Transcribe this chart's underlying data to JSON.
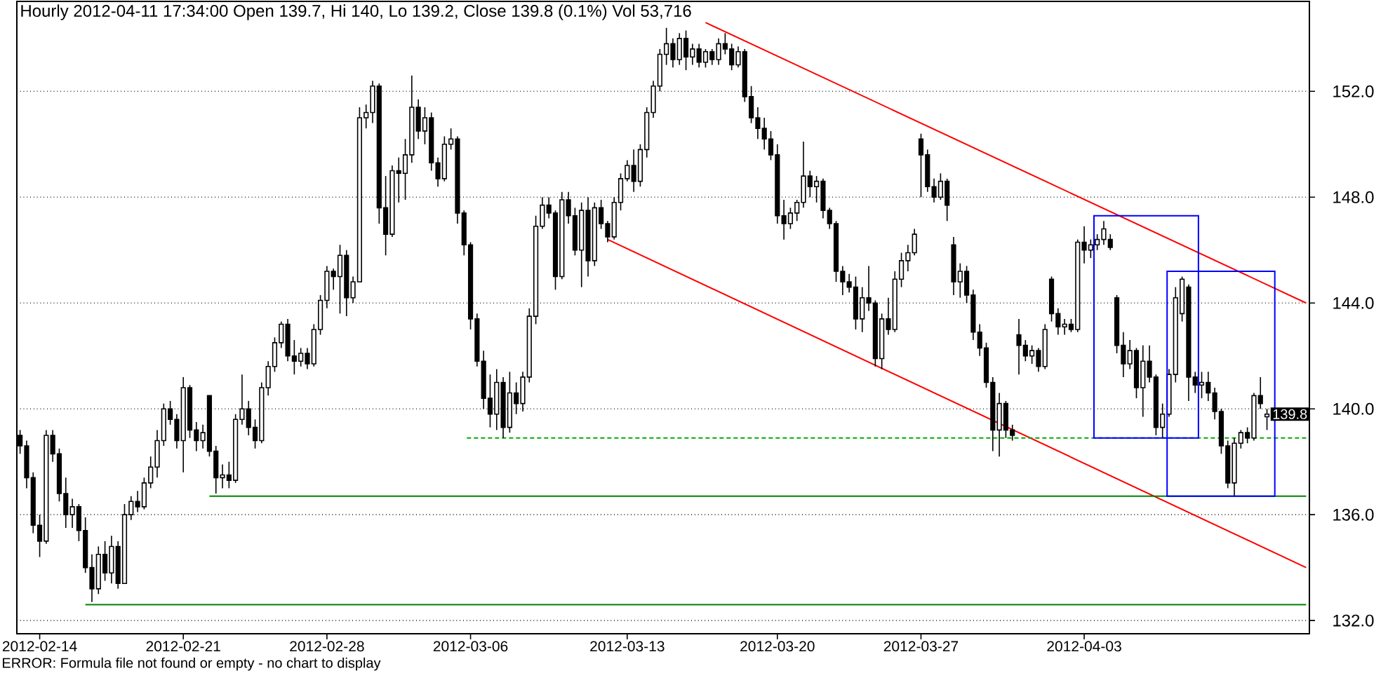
{
  "chart_data": {
    "type": "candlestick",
    "title": "Hourly 2012-04-11 17:34:00 Open 139.7, Hi 140, Lo 139.2, Close 139.8 (0.1%) Vol 53,716",
    "annotations": [
      "ERROR: Formula file not found or empty - no chart to display",
      {
        "text": "139.8",
        "y": 139.8
      }
    ],
    "ylim": [
      131.5,
      155.4
    ],
    "yticks": [
      {
        "value": 132,
        "label": "132.0"
      },
      {
        "value": 136,
        "label": "136.0"
      },
      {
        "value": 140,
        "label": "140.0"
      },
      {
        "value": 144,
        "label": "144.0"
      },
      {
        "value": 148,
        "label": "148.0"
      },
      {
        "value": 152,
        "label": "152.0"
      }
    ],
    "grid": "y",
    "categories": [
      null,
      null,
      null,
      "2012-02-14",
      null,
      null,
      null,
      null,
      null,
      null,
      null,
      null,
      null,
      null,
      null,
      null,
      null,
      null,
      null,
      null,
      null,
      null,
      null,
      null,
      null,
      "2012-02-21",
      null,
      null,
      null,
      null,
      null,
      null,
      null,
      null,
      null,
      null,
      null,
      null,
      null,
      null,
      null,
      null,
      null,
      null,
      null,
      null,
      null,
      "2012-02-28",
      null,
      null,
      null,
      null,
      null,
      null,
      null,
      null,
      null,
      null,
      null,
      null,
      null,
      null,
      null,
      null,
      null,
      null,
      null,
      null,
      null,
      "2012-03-06",
      null,
      null,
      null,
      null,
      null,
      null,
      null,
      null,
      null,
      null,
      null,
      null,
      null,
      null,
      null,
      null,
      null,
      null,
      null,
      null,
      null,
      null,
      null,
      "2012-03-13",
      null,
      null,
      null,
      null,
      null,
      null,
      null,
      null,
      null,
      null,
      null,
      null,
      null,
      null,
      null,
      null,
      null,
      null,
      null,
      null,
      null,
      null,
      "2012-03-20",
      null,
      null,
      null,
      null,
      null,
      null,
      null,
      null,
      null,
      null,
      null,
      null,
      null,
      null,
      null,
      null,
      null,
      null,
      null,
      null,
      null,
      "2012-03-27",
      null,
      null,
      null,
      null,
      null,
      null,
      null,
      null,
      null,
      null,
      null,
      null,
      null,
      null,
      null,
      null,
      null,
      null,
      null,
      null,
      null,
      null,
      null,
      null,
      "2012-04-03",
      null,
      null,
      null,
      null,
      null,
      null,
      null,
      null,
      null,
      null,
      null,
      null,
      null,
      null,
      null,
      null,
      null,
      null,
      null,
      null,
      null,
      null,
      null,
      null,
      null,
      null,
      null,
      null,
      null,
      null,
      null,
      null,
      null,
      null
    ],
    "ohlc": [
      [
        139.0,
        139.2,
        138.3,
        138.6
      ],
      [
        138.6,
        138.8,
        137.0,
        137.4
      ],
      [
        137.4,
        137.6,
        135.3,
        135.6
      ],
      [
        135.6,
        136.0,
        134.4,
        135.0
      ],
      [
        135.0,
        139.2,
        134.9,
        139.0
      ],
      [
        139.0,
        139.2,
        138.0,
        138.3
      ],
      [
        138.3,
        138.5,
        136.5,
        136.8
      ],
      [
        136.8,
        137.4,
        135.5,
        136.0
      ],
      [
        136.0,
        136.6,
        135.5,
        136.3
      ],
      [
        136.3,
        136.4,
        135.0,
        135.4
      ],
      [
        135.4,
        135.9,
        133.8,
        134.0
      ],
      [
        134.0,
        134.5,
        132.7,
        133.2
      ],
      [
        133.2,
        134.8,
        133.0,
        134.5
      ],
      [
        134.5,
        135.0,
        133.5,
        133.8
      ],
      [
        133.8,
        135.2,
        133.4,
        134.8
      ],
      [
        134.8,
        135.0,
        133.2,
        133.4
      ],
      [
        133.4,
        136.4,
        133.4,
        136.0
      ],
      [
        136.0,
        136.7,
        135.8,
        136.5
      ],
      [
        136.5,
        136.9,
        136.1,
        136.3
      ],
      [
        136.3,
        137.4,
        136.2,
        137.2
      ],
      [
        137.2,
        138.2,
        137.0,
        137.8
      ],
      [
        137.8,
        139.2,
        137.4,
        138.8
      ],
      [
        138.8,
        140.2,
        138.6,
        140.0
      ],
      [
        140.0,
        140.3,
        139.4,
        139.6
      ],
      [
        139.6,
        139.8,
        138.5,
        138.8
      ],
      [
        138.8,
        141.2,
        137.6,
        140.8
      ],
      [
        140.8,
        140.9,
        138.9,
        139.2
      ],
      [
        139.2,
        139.5,
        138.4,
        138.8
      ],
      [
        138.8,
        139.4,
        138.5,
        139.1
      ],
      [
        140.5,
        140.5,
        138.2,
        138.4
      ],
      [
        138.4,
        138.6,
        136.8,
        137.4
      ],
      [
        137.4,
        137.9,
        137.0,
        137.5
      ],
      [
        137.5,
        138.0,
        137.0,
        137.3
      ],
      [
        137.3,
        139.8,
        137.2,
        139.6
      ],
      [
        139.6,
        141.3,
        139.4,
        140.0
      ],
      [
        140.0,
        140.3,
        139.0,
        139.3
      ],
      [
        139.3,
        139.6,
        138.5,
        138.8
      ],
      [
        138.8,
        141.0,
        138.7,
        140.8
      ],
      [
        140.8,
        141.8,
        140.5,
        141.6
      ],
      [
        141.6,
        142.7,
        141.4,
        142.5
      ],
      [
        142.5,
        143.3,
        142.3,
        143.2
      ],
      [
        143.2,
        143.4,
        141.8,
        142.0
      ],
      [
        142.0,
        142.6,
        141.3,
        141.8
      ],
      [
        141.8,
        142.3,
        141.6,
        142.1
      ],
      [
        142.1,
        142.3,
        141.5,
        141.7
      ],
      [
        141.7,
        143.2,
        141.6,
        143.0
      ],
      [
        143.0,
        144.3,
        142.8,
        144.1
      ],
      [
        144.1,
        145.4,
        143.8,
        145.2
      ],
      [
        145.2,
        145.3,
        144.5,
        145.0
      ],
      [
        145.0,
        146.2,
        143.6,
        145.8
      ],
      [
        145.8,
        146.0,
        143.5,
        144.2
      ],
      [
        144.2,
        145.0,
        144.0,
        144.8
      ],
      [
        144.8,
        151.4,
        144.8,
        151.0
      ],
      [
        151.0,
        151.5,
        150.6,
        151.2
      ],
      [
        151.2,
        152.4,
        150.8,
        152.2
      ],
      [
        152.2,
        152.3,
        147.0,
        147.6
      ],
      [
        147.6,
        148.8,
        145.8,
        146.6
      ],
      [
        146.6,
        149.2,
        146.5,
        149.0
      ],
      [
        149.0,
        149.5,
        147.8,
        148.9
      ],
      [
        148.9,
        150.2,
        147.9,
        149.6
      ],
      [
        149.6,
        152.6,
        149.3,
        151.4
      ],
      [
        151.4,
        151.7,
        150.2,
        150.5
      ],
      [
        150.5,
        151.4,
        150.0,
        151.0
      ],
      [
        151.0,
        151.2,
        149.0,
        149.3
      ],
      [
        149.3,
        149.5,
        148.4,
        148.7
      ],
      [
        148.7,
        150.3,
        148.6,
        150.0
      ],
      [
        150.0,
        150.6,
        149.8,
        150.2
      ],
      [
        150.2,
        150.3,
        147.0,
        147.4
      ],
      [
        147.4,
        147.5,
        145.8,
        146.2
      ],
      [
        146.2,
        146.3,
        143.0,
        143.4
      ],
      [
        143.4,
        143.6,
        141.6,
        141.8
      ],
      [
        141.8,
        142.2,
        140.0,
        140.4
      ],
      [
        140.4,
        141.3,
        139.3,
        139.8
      ],
      [
        139.8,
        141.5,
        139.2,
        141.0
      ],
      [
        141.0,
        141.2,
        138.9,
        139.3
      ],
      [
        139.3,
        141.4,
        139.1,
        140.6
      ],
      [
        140.6,
        141.0,
        139.8,
        140.2
      ],
      [
        140.2,
        141.4,
        139.9,
        141.2
      ],
      [
        141.2,
        143.8,
        141.0,
        143.5
      ],
      [
        143.5,
        147.3,
        143.2,
        146.9
      ],
      [
        146.9,
        148.0,
        146.8,
        147.7
      ],
      [
        147.7,
        148.0,
        147.2,
        147.4
      ],
      [
        147.4,
        147.5,
        144.5,
        145.0
      ],
      [
        145.0,
        148.2,
        144.9,
        147.9
      ],
      [
        147.9,
        148.2,
        147.0,
        147.3
      ],
      [
        147.3,
        147.6,
        145.8,
        146.0
      ],
      [
        146.0,
        147.8,
        144.6,
        147.5
      ],
      [
        147.5,
        148.0,
        145.0,
        145.6
      ],
      [
        145.6,
        147.8,
        145.4,
        147.6
      ],
      [
        147.6,
        147.9,
        146.8,
        147.0
      ],
      [
        147.0,
        147.1,
        146.3,
        146.5
      ],
      [
        146.5,
        148.0,
        146.4,
        147.8
      ],
      [
        147.8,
        148.9,
        147.5,
        148.7
      ],
      [
        148.7,
        149.4,
        148.6,
        149.2
      ],
      [
        149.2,
        149.8,
        148.2,
        148.6
      ],
      [
        148.6,
        150.0,
        148.4,
        149.8
      ],
      [
        149.8,
        151.4,
        149.5,
        151.2
      ],
      [
        151.2,
        152.4,
        151.0,
        152.2
      ],
      [
        152.2,
        153.6,
        152.0,
        153.4
      ],
      [
        153.4,
        154.4,
        153.0,
        153.8
      ],
      [
        153.8,
        154.0,
        152.9,
        153.2
      ],
      [
        153.2,
        154.2,
        153.0,
        154.0
      ],
      [
        154.0,
        154.3,
        152.8,
        153.3
      ],
      [
        153.3,
        153.8,
        153.0,
        153.6
      ],
      [
        153.6,
        153.8,
        152.9,
        153.1
      ],
      [
        153.1,
        153.6,
        152.9,
        153.5
      ],
      [
        153.5,
        153.6,
        153.0,
        153.2
      ],
      [
        153.2,
        154.0,
        153.0,
        153.8
      ],
      [
        153.8,
        154.2,
        153.4,
        153.6
      ],
      [
        153.6,
        153.8,
        152.8,
        153.0
      ],
      [
        153.0,
        153.7,
        152.9,
        153.5
      ],
      [
        153.5,
        153.6,
        151.6,
        151.8
      ],
      [
        151.8,
        152.2,
        150.8,
        151.0
      ],
      [
        151.0,
        151.4,
        150.2,
        150.6
      ],
      [
        150.6,
        151.0,
        149.8,
        150.2
      ],
      [
        150.2,
        150.5,
        149.4,
        149.6
      ],
      [
        149.6,
        150.0,
        147.0,
        147.3
      ],
      [
        147.3,
        147.9,
        146.4,
        147.0
      ],
      [
        147.0,
        147.6,
        146.8,
        147.4
      ],
      [
        147.4,
        147.9,
        147.1,
        147.8
      ],
      [
        147.8,
        150.1,
        147.6,
        148.8
      ],
      [
        148.8,
        149.0,
        148.0,
        148.4
      ],
      [
        148.4,
        148.8,
        147.8,
        148.6
      ],
      [
        148.6,
        148.7,
        147.2,
        147.5
      ],
      [
        147.5,
        147.6,
        146.8,
        147.0
      ],
      [
        147.0,
        147.1,
        144.8,
        145.2
      ],
      [
        145.2,
        145.4,
        144.3,
        144.8
      ],
      [
        144.8,
        145.1,
        144.4,
        144.6
      ],
      [
        144.6,
        145.0,
        143.0,
        143.4
      ],
      [
        143.4,
        144.6,
        142.9,
        144.2
      ],
      [
        144.2,
        145.4,
        143.7,
        144.0
      ],
      [
        144.0,
        144.1,
        141.6,
        141.9
      ],
      [
        141.9,
        143.6,
        141.5,
        143.4
      ],
      [
        143.4,
        144.2,
        142.8,
        143.0
      ],
      [
        143.0,
        145.2,
        142.9,
        144.9
      ],
      [
        144.9,
        145.9,
        144.6,
        145.6
      ],
      [
        145.6,
        146.2,
        145.2,
        145.9
      ],
      [
        145.9,
        146.8,
        145.8,
        146.6
      ],
      [
        150.2,
        150.4,
        148.0,
        149.6
      ],
      [
        149.6,
        149.8,
        148.2,
        148.4
      ],
      [
        148.4,
        148.7,
        147.8,
        148.0
      ],
      [
        148.0,
        148.9,
        147.9,
        148.6
      ],
      [
        148.6,
        148.7,
        147.1,
        147.7
      ],
      [
        146.2,
        146.5,
        144.3,
        144.8
      ],
      [
        144.8,
        145.5,
        144.2,
        145.2
      ],
      [
        145.2,
        145.4,
        144.0,
        144.3
      ],
      [
        144.3,
        144.5,
        142.6,
        142.9
      ],
      [
        142.9,
        143.2,
        142.0,
        142.3
      ],
      [
        142.3,
        142.5,
        140.8,
        141.0
      ],
      [
        141.0,
        141.2,
        138.4,
        139.2
      ],
      [
        139.2,
        140.6,
        138.2,
        140.2
      ],
      [
        140.2,
        140.3,
        138.9,
        139.2
      ],
      [
        139.2,
        139.4,
        138.8,
        139.0
      ],
      [
        142.8,
        143.4,
        141.3,
        142.4
      ],
      [
        142.4,
        142.6,
        141.8,
        142.0
      ],
      [
        142.0,
        142.4,
        141.7,
        142.2
      ],
      [
        142.2,
        142.3,
        141.4,
        141.6
      ],
      [
        141.6,
        143.2,
        141.5,
        143.0
      ],
      [
        144.9,
        145.0,
        143.3,
        143.6
      ],
      [
        143.6,
        143.8,
        142.8,
        143.1
      ],
      [
        143.1,
        143.4,
        142.8,
        143.2
      ],
      [
        143.2,
        143.4,
        142.9,
        143.0
      ],
      [
        143.0,
        146.4,
        142.9,
        146.3
      ],
      [
        146.3,
        146.9,
        145.5,
        146.0
      ],
      [
        146.0,
        146.4,
        145.7,
        146.2
      ],
      [
        146.2,
        146.6,
        146.0,
        146.4
      ],
      [
        146.4,
        147.1,
        146.2,
        146.8
      ],
      [
        146.4,
        146.6,
        146.0,
        146.1
      ],
      [
        144.2,
        144.3,
        142.1,
        142.4
      ],
      [
        142.4,
        142.9,
        141.2,
        141.7
      ],
      [
        141.7,
        142.6,
        141.5,
        142.2
      ],
      [
        142.2,
        142.3,
        140.4,
        140.8
      ],
      [
        140.8,
        142.4,
        139.7,
        141.8
      ],
      [
        141.8,
        142.4,
        141.0,
        141.2
      ],
      [
        141.2,
        141.3,
        139.0,
        139.3
      ],
      [
        139.3,
        140.2,
        138.9,
        139.8
      ],
      [
        139.8,
        141.5,
        139.7,
        141.3
      ],
      [
        141.3,
        144.6,
        141.0,
        144.2
      ],
      [
        143.6,
        145.0,
        143.3,
        144.9
      ],
      [
        144.6,
        144.7,
        140.3,
        141.2
      ],
      [
        141.2,
        141.4,
        140.6,
        140.9
      ],
      [
        140.9,
        141.4,
        140.4,
        141.0
      ],
      [
        141.0,
        141.4,
        140.3,
        140.6
      ],
      [
        140.6,
        140.8,
        139.6,
        139.9
      ],
      [
        139.9,
        140.0,
        138.3,
        138.6
      ],
      [
        138.6,
        138.8,
        137.0,
        137.2
      ],
      [
        137.2,
        138.9,
        136.7,
        138.7
      ],
      [
        138.7,
        139.2,
        138.5,
        139.1
      ],
      [
        139.1,
        139.3,
        138.7,
        138.9
      ],
      [
        138.9,
        140.6,
        138.8,
        140.5
      ],
      [
        140.5,
        141.2,
        140.0,
        140.2
      ],
      [
        139.7,
        140.0,
        139.2,
        139.8
      ],
      null,
      null,
      null,
      null,
      null,
      null
    ],
    "series": [
      {
        "type": "line",
        "color": "#ff0000",
        "values": [
          null,
          null,
          null,
          null,
          null,
          null,
          null,
          null,
          null,
          null,
          null,
          null,
          null,
          null,
          null,
          null,
          null,
          null,
          null,
          null,
          null,
          null,
          null,
          null,
          null,
          null,
          null,
          null,
          null,
          null,
          null,
          null,
          null,
          null,
          null,
          null,
          null,
          null,
          null,
          null,
          null,
          null,
          null,
          null,
          null,
          null,
          null,
          null,
          null,
          null,
          null,
          null,
          null,
          null,
          null,
          null,
          null,
          null,
          null,
          null,
          null,
          null,
          null,
          null,
          null,
          null,
          null,
          null,
          null,
          null,
          null,
          null,
          null,
          null,
          null,
          null,
          null,
          null,
          null,
          null,
          null,
          null,
          null,
          null,
          null,
          null,
          null,
          null,
          null,
          null,
          null,
          null,
          null,
          null,
          null,
          null,
          null,
          null,
          null,
          null,
          null,
          null,
          null,
          null,
          null,
          154.6,
          null,
          null,
          null,
          null,
          null,
          null,
          null,
          null,
          null,
          null,
          null,
          null,
          null,
          null,
          null,
          null,
          null,
          null,
          null,
          null,
          null,
          null,
          null,
          null,
          null,
          null,
          null,
          null,
          null,
          null,
          null,
          null,
          null,
          null,
          null,
          null,
          null,
          null,
          null,
          null,
          null,
          null,
          null,
          null,
          null,
          null,
          null,
          null,
          null,
          null,
          null,
          null,
          null,
          null,
          null,
          null,
          null,
          null,
          null,
          null,
          null,
          null,
          null,
          null,
          null,
          null,
          null,
          null,
          null,
          null,
          null,
          null,
          null,
          null,
          null,
          null,
          null,
          null,
          null,
          null,
          null,
          null,
          null,
          null,
          null,
          null,
          null,
          null,
          null,
          null,
          null,
          144.0
        ]
      },
      {
        "type": "line",
        "color": "#ff0000",
        "values": [
          null,
          null,
          null,
          null,
          null,
          null,
          null,
          null,
          null,
          null,
          null,
          null,
          null,
          null,
          null,
          null,
          null,
          null,
          null,
          null,
          null,
          null,
          null,
          null,
          null,
          null,
          null,
          null,
          null,
          null,
          null,
          null,
          null,
          null,
          null,
          null,
          null,
          null,
          null,
          null,
          null,
          null,
          null,
          null,
          null,
          null,
          null,
          null,
          null,
          null,
          null,
          null,
          null,
          null,
          null,
          null,
          null,
          null,
          null,
          null,
          null,
          null,
          null,
          null,
          null,
          null,
          null,
          null,
          null,
          null,
          null,
          null,
          null,
          null,
          null,
          null,
          null,
          null,
          null,
          null,
          null,
          null,
          null,
          null,
          null,
          null,
          null,
          null,
          null,
          null,
          146.4,
          null,
          null,
          null,
          null,
          null,
          null,
          null,
          null,
          null,
          null,
          null,
          null,
          null,
          null,
          null,
          null,
          null,
          null,
          null,
          null,
          null,
          null,
          null,
          null,
          null,
          null,
          null,
          null,
          null,
          null,
          null,
          null,
          null,
          null,
          null,
          null,
          null,
          null,
          null,
          null,
          null,
          null,
          null,
          null,
          null,
          null,
          null,
          null,
          null,
          null,
          null,
          null,
          null,
          null,
          null,
          null,
          null,
          null,
          null,
          null,
          null,
          null,
          null,
          null,
          null,
          null,
          null,
          null,
          null,
          null,
          null,
          null,
          null,
          null,
          null,
          null,
          null,
          null,
          null,
          null,
          null,
          null,
          null,
          null,
          null,
          null,
          null,
          null,
          null,
          null,
          null,
          null,
          null,
          null,
          null,
          null,
          null,
          null,
          null,
          null,
          null,
          null,
          null,
          null,
          null,
          null,
          134.0
        ]
      },
      {
        "type": "line",
        "color": "#00aa00",
        "line_style": "dashed",
        "values": [
          null,
          null,
          null,
          null,
          null,
          null,
          null,
          null,
          null,
          null,
          null,
          null,
          null,
          null,
          null,
          null,
          null,
          null,
          null,
          null,
          null,
          null,
          null,
          null,
          null,
          null,
          null,
          null,
          null,
          null,
          null,
          null,
          null,
          null,
          null,
          null,
          null,
          null,
          null,
          null,
          null,
          null,
          null,
          null,
          null,
          null,
          null,
          null,
          null,
          null,
          null,
          null,
          null,
          null,
          null,
          null,
          null,
          null,
          null,
          null,
          null,
          null,
          null,
          null,
          null,
          null,
          null,
          null,
          138.9,
          null,
          null,
          null,
          null,
          null,
          null,
          null,
          null,
          null,
          null,
          null,
          null,
          null,
          null,
          null,
          null,
          null,
          null,
          null,
          null,
          null,
          null,
          null,
          null,
          null,
          null,
          null,
          null,
          null,
          null,
          null,
          null,
          null,
          null,
          null,
          null,
          null,
          null,
          null,
          null,
          null,
          null,
          null,
          null,
          null,
          null,
          null,
          null,
          null,
          null,
          null,
          null,
          null,
          null,
          null,
          null,
          null,
          null,
          null,
          null,
          null,
          null,
          null,
          null,
          null,
          null,
          null,
          null,
          null,
          null,
          null,
          null,
          null,
          null,
          null,
          null,
          null,
          null,
          null,
          null,
          null,
          null,
          null,
          null,
          null,
          null,
          null,
          null,
          null,
          null,
          null,
          null,
          null,
          null,
          null,
          null,
          null,
          null,
          null,
          null,
          null,
          null,
          null,
          null,
          null,
          null,
          null,
          null,
          null,
          null,
          null,
          null,
          null,
          null,
          null,
          null,
          null,
          null,
          null,
          null,
          null,
          null,
          null,
          null,
          null,
          null,
          null,
          null,
          138.9
        ]
      },
      {
        "type": "line",
        "color": "#008000",
        "values": [
          null,
          null,
          null,
          null,
          null,
          null,
          null,
          null,
          null,
          null,
          null,
          null,
          null,
          null,
          null,
          null,
          null,
          null,
          null,
          null,
          null,
          null,
          null,
          null,
          null,
          null,
          null,
          null,
          null,
          136.7,
          null,
          null,
          null,
          null,
          null,
          null,
          null,
          null,
          null,
          null,
          null,
          null,
          null,
          null,
          null,
          null,
          null,
          null,
          null,
          null,
          null,
          null,
          null,
          null,
          null,
          null,
          null,
          null,
          null,
          null,
          null,
          null,
          null,
          null,
          null,
          null,
          null,
          null,
          null,
          null,
          null,
          null,
          null,
          null,
          null,
          null,
          null,
          null,
          null,
          null,
          null,
          null,
          null,
          null,
          null,
          null,
          null,
          null,
          null,
          null,
          null,
          null,
          null,
          null,
          null,
          null,
          null,
          null,
          null,
          null,
          null,
          null,
          null,
          null,
          null,
          null,
          null,
          null,
          null,
          null,
          null,
          null,
          null,
          null,
          null,
          null,
          null,
          null,
          null,
          null,
          null,
          null,
          null,
          null,
          null,
          null,
          null,
          null,
          null,
          null,
          null,
          null,
          null,
          null,
          null,
          null,
          null,
          null,
          null,
          null,
          null,
          null,
          null,
          null,
          null,
          null,
          null,
          null,
          null,
          null,
          null,
          null,
          null,
          null,
          null,
          null,
          null,
          null,
          null,
          null,
          null,
          null,
          null,
          null,
          null,
          null,
          null,
          null,
          null,
          null,
          null,
          null,
          null,
          null,
          null,
          null,
          null,
          null,
          null,
          null,
          null,
          null,
          null,
          null,
          null,
          null,
          null,
          null,
          null,
          null,
          null,
          null,
          null,
          null,
          null,
          null,
          null,
          136.7
        ]
      },
      {
        "type": "line",
        "color": "#008000",
        "values": [
          null,
          null,
          null,
          null,
          null,
          null,
          null,
          null,
          null,
          null,
          132.6,
          null,
          null,
          null,
          null,
          null,
          null,
          null,
          null,
          null,
          null,
          null,
          null,
          null,
          null,
          null,
          null,
          null,
          null,
          null,
          null,
          null,
          null,
          null,
          null,
          null,
          null,
          null,
          null,
          null,
          null,
          null,
          null,
          null,
          null,
          null,
          null,
          null,
          null,
          null,
          null,
          null,
          null,
          null,
          null,
          null,
          null,
          null,
          null,
          null,
          null,
          null,
          null,
          null,
          null,
          null,
          null,
          null,
          null,
          null,
          null,
          null,
          null,
          null,
          null,
          null,
          null,
          null,
          null,
          null,
          null,
          null,
          null,
          null,
          null,
          null,
          null,
          null,
          null,
          null,
          null,
          null,
          null,
          null,
          null,
          null,
          null,
          null,
          null,
          null,
          null,
          null,
          null,
          null,
          null,
          null,
          null,
          null,
          null,
          null,
          null,
          null,
          null,
          null,
          null,
          null,
          null,
          null,
          null,
          null,
          null,
          null,
          null,
          null,
          null,
          null,
          null,
          null,
          null,
          null,
          null,
          null,
          null,
          null,
          null,
          null,
          null,
          null,
          null,
          null,
          null,
          null,
          null,
          null,
          null,
          null,
          null,
          null,
          null,
          null,
          null,
          null,
          null,
          null,
          null,
          null,
          null,
          null,
          null,
          null,
          null,
          null,
          null,
          null,
          null,
          null,
          null,
          null,
          null,
          null,
          null,
          null,
          null,
          null,
          null,
          null,
          null,
          null,
          null,
          null,
          null,
          null,
          null,
          null,
          null,
          null,
          null,
          null,
          null,
          null,
          null,
          null,
          null,
          null,
          null,
          null,
          null,
          132.6
        ]
      }
    ]
  }
}
